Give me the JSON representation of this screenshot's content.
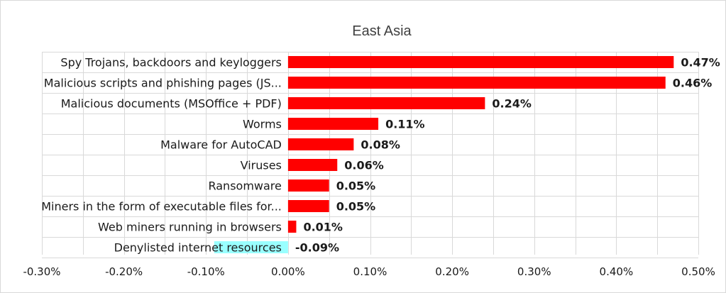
{
  "chart_data": {
    "type": "bar",
    "orientation": "horizontal",
    "title": "East Asia",
    "xlabel": "",
    "ylabel": "",
    "xlim": [
      -0.3,
      0.5
    ],
    "x_ticks": [
      "-0.30%",
      "-0.20%",
      "-0.10%",
      "0.00%",
      "0.10%",
      "0.20%",
      "0.30%",
      "0.40%",
      "0.50%"
    ],
    "grid": true,
    "legend": "none",
    "bar_color": "#ff0000",
    "highlight_color": "#99ffff",
    "categories": [
      "Spy Trojans, backdoors and keyloggers",
      "Malicious scripts and phishing pages (JS...",
      "Malicious documents (MSOffice + PDF)",
      "Worms",
      "Malware for AutoCAD",
      "Viruses",
      "Ransomware",
      "Miners in the form of executable files for...",
      "Web miners running in browsers",
      "Denylisted internet resources"
    ],
    "values": [
      0.47,
      0.46,
      0.24,
      0.11,
      0.08,
      0.06,
      0.05,
      0.05,
      0.01,
      -0.09
    ],
    "data_labels": [
      "0.47%",
      "0.46%",
      "0.24%",
      "0.11%",
      "0.08%",
      "0.06%",
      "0.05%",
      "0.05%",
      "0.01%",
      "-0.09%"
    ]
  }
}
